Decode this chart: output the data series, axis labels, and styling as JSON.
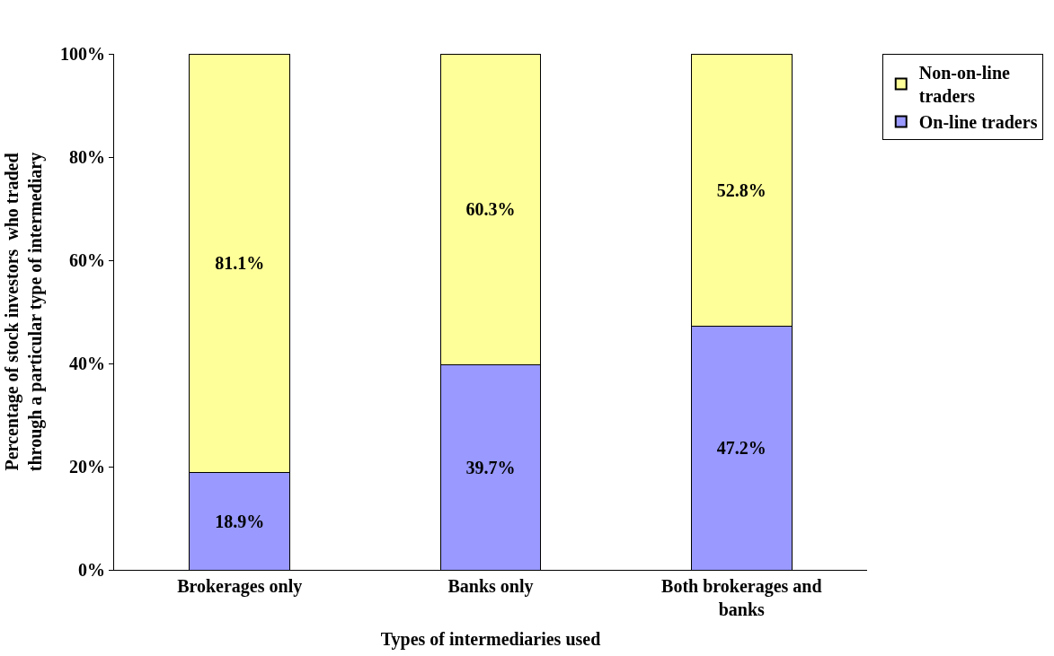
{
  "chart_data": {
    "type": "bar",
    "stacked": true,
    "xlabel": "Types of intermediaries used",
    "ylabel": "Percentage of stock investors  who traded through a particular type of intermediary",
    "categories": [
      "Brokerages only",
      "Banks only",
      "Both brokerages and banks"
    ],
    "series": [
      {
        "name": "On-line traders",
        "color": "#9999ff",
        "values": [
          18.9,
          39.7,
          47.2
        ],
        "value_labels": [
          "18.9%",
          "39.7%",
          "47.2%"
        ]
      },
      {
        "name": "Non-on-line traders",
        "color": "#ffff99",
        "values": [
          81.1,
          60.3,
          52.8
        ],
        "value_labels": [
          "81.1%",
          "60.3%",
          "52.8%"
        ]
      }
    ],
    "ylim": [
      0,
      100
    ],
    "yticks": [
      {
        "value": 0,
        "label": "0%"
      },
      {
        "value": 20,
        "label": "20%"
      },
      {
        "value": 40,
        "label": "40%"
      },
      {
        "value": 60,
        "label": "60%"
      },
      {
        "value": 80,
        "label": "80%"
      },
      {
        "value": 100,
        "label": "100%"
      }
    ],
    "legend": "right"
  }
}
